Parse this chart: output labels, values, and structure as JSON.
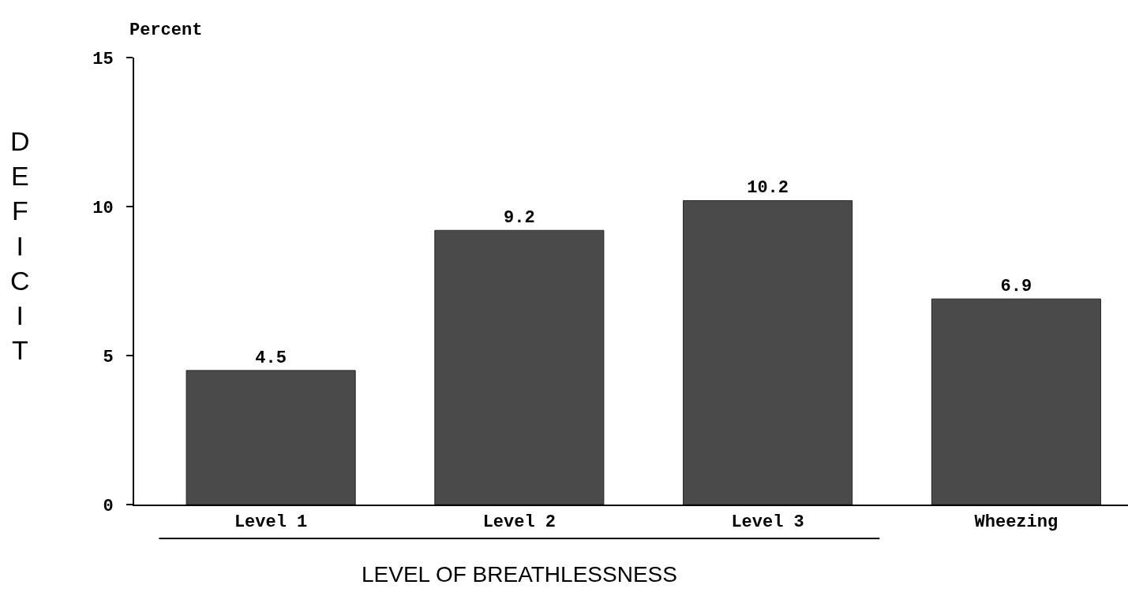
{
  "chart_data": {
    "type": "bar",
    "categories": [
      "Level 1",
      "Level 2",
      "Level 3",
      "Wheezing"
    ],
    "values": [
      4.5,
      9.2,
      10.2,
      6.9
    ],
    "color": "#4a4a4a",
    "ylim": [
      0,
      15
    ],
    "yticks": [
      0,
      5,
      10,
      15
    ],
    "ylabel": "DEFICIT",
    "xlabel": "LEVEL OF BREATHLESSNESS",
    "annotations": [
      "Percent"
    ],
    "data_labels": true
  }
}
